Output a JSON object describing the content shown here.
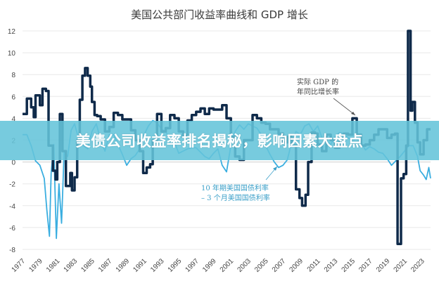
{
  "chart_data": {
    "type": "line",
    "title": "美国公共部门收益率曲线和 GDP 增长",
    "xlabel": "",
    "ylabel": "",
    "ylim": [
      -8,
      12
    ],
    "xlim": [
      1977,
      2024
    ],
    "grid": true,
    "yticks": [
      12,
      10,
      8,
      6,
      4,
      2,
      0,
      -2,
      -4,
      -6,
      -8
    ],
    "xticks": [
      "1977",
      "1979",
      "1981",
      "1983",
      "1985",
      "1987",
      "1989",
      "1991",
      "1993",
      "1995",
      "1997",
      "1999",
      "2001",
      "2003",
      "2005",
      "2007",
      "2009",
      "2011",
      "2013",
      "2015",
      "2017",
      "2019",
      "2021",
      "2023"
    ],
    "series": [
      {
        "name": "实际 GDP 的年同比增长率",
        "color": "#0f2a4a",
        "step": true,
        "x": [
          1977,
          1977.5,
          1978,
          1978.3,
          1978.5,
          1979,
          1979.3,
          1979.7,
          1980,
          1980.5,
          1980.8,
          1981,
          1981.3,
          1981.6,
          1982,
          1982.5,
          1982.7,
          1983,
          1983.3,
          1983.6,
          1983.9,
          1984.2,
          1984.5,
          1984.8,
          1985,
          1985.3,
          1985.6,
          1986,
          1986.5,
          1987,
          1987.5,
          1988,
          1988.5,
          1989,
          1989.5,
          1990,
          1990.5,
          1990.9,
          1991.3,
          1991.7,
          1992,
          1992.5,
          1993,
          1993.5,
          1994,
          1994.5,
          1995,
          1995.5,
          1996,
          1996.5,
          1997,
          1997.5,
          1998,
          1998.5,
          1999,
          1999.5,
          2000,
          2000.5,
          2001,
          2001.5,
          2002,
          2002.5,
          2003,
          2003.5,
          2004,
          2004.5,
          2005,
          2005.5,
          2006,
          2006.5,
          2007,
          2007.5,
          2008,
          2008.5,
          2008.9,
          2009.2,
          2009.6,
          2009.9,
          2010.3,
          2010.7,
          2011,
          2011.5,
          2012,
          2012.5,
          2013,
          2013.5,
          2014,
          2014.5,
          2015,
          2015.5,
          2016,
          2016.5,
          2017,
          2017.5,
          2018,
          2018.5,
          2019,
          2019.5,
          2019.9,
          2020.2,
          2020.6,
          2020.9,
          2021.2,
          2021.4,
          2021.7,
          2021.9,
          2022.2,
          2022.5,
          2022.8,
          2023.2,
          2023.6,
          2024
        ],
        "y": [
          4.4,
          5.8,
          5.0,
          4.1,
          6.1,
          5.2,
          6.7,
          6.5,
          1.5,
          -0.8,
          -1.6,
          0.0,
          4.4,
          1.0,
          -2.2,
          -1.0,
          -2.6,
          -1.4,
          2.0,
          5.7,
          7.9,
          8.6,
          7.9,
          6.9,
          5.5,
          4.3,
          4.2,
          3.9,
          2.8,
          3.2,
          4.5,
          4.3,
          3.9,
          3.9,
          2.9,
          2.0,
          1.0,
          -1.0,
          -0.5,
          -0.2,
          2.0,
          4.4,
          2.8,
          3.1,
          4.3,
          4.0,
          2.8,
          2.3,
          3.8,
          4.3,
          4.6,
          4.9,
          4.4,
          4.9,
          4.8,
          4.8,
          5.2,
          4.0,
          2.3,
          0.5,
          0.2,
          2.0,
          2.0,
          4.3,
          4.0,
          3.6,
          3.5,
          3.0,
          3.0,
          2.6,
          1.8,
          2.3,
          1.5,
          -2.5,
          -3.3,
          -4.0,
          -3.0,
          0.0,
          2.7,
          2.6,
          1.6,
          1.0,
          2.5,
          2.0,
          1.3,
          1.9,
          2.6,
          2.5,
          4.0,
          2.5,
          1.5,
          1.6,
          2.0,
          2.5,
          3.0,
          3.0,
          2.2,
          2.5,
          2.6,
          -7.5,
          -1.5,
          -1.1,
          1.5,
          12.0,
          4.7,
          5.5,
          3.6,
          1.8,
          0.7,
          2.0,
          3.0,
          3.0
        ]
      },
      {
        "name": "10 年期美国国债利率 – 3 个月美国国债利率",
        "color": "#3aaee0",
        "step": false,
        "x": [
          1977,
          1977.5,
          1978,
          1978.5,
          1979,
          1979.5,
          1979.8,
          1980.1,
          1980.3,
          1980.6,
          1980.9,
          1981.2,
          1981.5,
          1981.8,
          1982.2,
          1982.6,
          1983,
          1983.5,
          1984,
          1984.5,
          1985,
          1985.5,
          1986,
          1986.5,
          1987,
          1987.5,
          1988,
          1988.5,
          1989,
          1989.5,
          1990,
          1990.5,
          1991,
          1991.5,
          1992,
          1992.5,
          1993,
          1993.5,
          1994,
          1994.5,
          1995,
          1995.5,
          1996,
          1996.5,
          1997,
          1997.5,
          1998,
          1998.5,
          1999,
          1999.5,
          2000,
          2000.5,
          2001,
          2001.5,
          2002,
          2002.5,
          2003,
          2003.5,
          2004,
          2004.5,
          2005,
          2005.5,
          2006,
          2006.5,
          2007,
          2007.5,
          2008,
          2008.5,
          2009,
          2009.5,
          2010,
          2010.5,
          2011,
          2011.5,
          2012,
          2012.5,
          2013,
          2013.5,
          2014,
          2014.5,
          2015,
          2015.5,
          2016,
          2016.5,
          2017,
          2017.5,
          2018,
          2018.5,
          2019,
          2019.5,
          2020,
          2020.5,
          2021,
          2021.5,
          2022,
          2022.5,
          2022.8,
          2023.2,
          2023.5,
          2023.8,
          2024
        ],
        "y": [
          2.5,
          2.5,
          1.5,
          0.1,
          -0.3,
          -1.5,
          -4.4,
          -6.8,
          -1.0,
          1.6,
          -7.0,
          -2.0,
          -5.6,
          1.0,
          0.5,
          2.9,
          3.5,
          2.0,
          1.5,
          1.2,
          2.8,
          3.5,
          2.0,
          1.0,
          2.5,
          2.5,
          1.6,
          0.7,
          -0.3,
          0.3,
          0.6,
          1.2,
          2.5,
          3.3,
          3.8,
          3.6,
          3.0,
          2.8,
          2.0,
          1.8,
          0.8,
          1.0,
          1.2,
          1.3,
          1.3,
          0.9,
          0.5,
          0.3,
          0.8,
          1.2,
          -0.3,
          -0.9,
          1.5,
          2.8,
          3.4,
          3.0,
          3.5,
          3.3,
          3.1,
          2.5,
          1.5,
          0.7,
          0.0,
          -0.5,
          -0.3,
          0.2,
          1.8,
          2.8,
          2.5,
          3.3,
          3.5,
          2.8,
          3.3,
          2.2,
          1.9,
          1.6,
          2.3,
          2.7,
          2.6,
          2.2,
          2.0,
          2.1,
          1.8,
          1.1,
          1.4,
          1.2,
          0.9,
          0.8,
          0.3,
          -0.3,
          0.1,
          0.5,
          1.0,
          1.5,
          1.5,
          0.5,
          -0.8,
          -1.2,
          -1.6,
          -0.5,
          -1.5
        ]
      }
    ],
    "annotations": {
      "gdp_line1": "实际 GDP 的",
      "gdp_line2": "年同比增长率",
      "spread_line1": "10 年期美国国债利率",
      "spread_line2": "– 3 个月美国国债利率"
    }
  },
  "banner": {
    "headline": "美债公司收益率排名揭秘，影响因素大盘点"
  }
}
